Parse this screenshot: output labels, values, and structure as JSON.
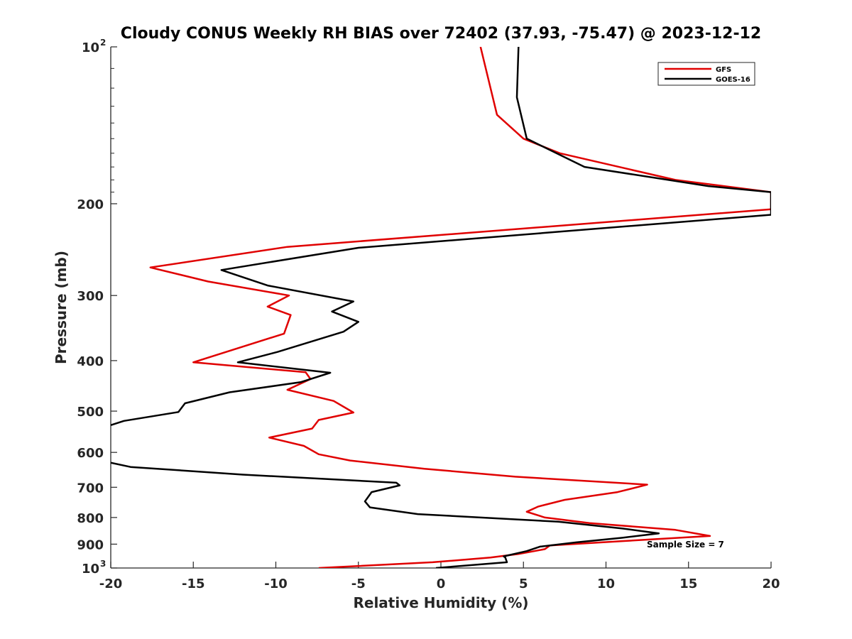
{
  "chart_data": {
    "type": "line",
    "title": "Cloudy CONUS Weekly RH BIAS over 72402 (37.93, -75.47) @ 2023-12-12",
    "xlabel": "Relative Humidity (%)",
    "ylabel": "Pressure (mb)",
    "xlim": [
      -20,
      20
    ],
    "ylim": [
      100,
      1000
    ],
    "yscale": "log",
    "y_reversed": true,
    "grid": false,
    "legend_position": "top-right",
    "x_ticks": [
      "-20",
      "-15",
      "-10",
      "-5",
      "0",
      "5",
      "10",
      "15",
      "20"
    ],
    "x_tick_values": [
      -20,
      -15,
      -10,
      -5,
      0,
      5,
      10,
      15,
      20
    ],
    "y_ticks": [
      {
        "value": 100,
        "base": "10",
        "exp": "2"
      },
      {
        "value": 200,
        "base": "200",
        "exp": ""
      },
      {
        "value": 300,
        "base": "300",
        "exp": ""
      },
      {
        "value": 400,
        "base": "400",
        "exp": ""
      },
      {
        "value": 500,
        "base": "500",
        "exp": ""
      },
      {
        "value": 600,
        "base": "600",
        "exp": ""
      },
      {
        "value": 700,
        "base": "700",
        "exp": ""
      },
      {
        "value": 800,
        "base": "800",
        "exp": ""
      },
      {
        "value": 900,
        "base": "900",
        "exp": ""
      },
      {
        "value": 1000,
        "base": "10",
        "exp": "3"
      }
    ],
    "annotation": "Sample Size = 7",
    "series": [
      {
        "name": "GFS",
        "color": "#e00000",
        "points": [
          [
            2.4,
            100
          ],
          [
            3.4,
            135
          ],
          [
            5.0,
            150
          ],
          [
            7.2,
            160
          ],
          [
            14.2,
            180
          ],
          [
            20,
            190
          ],
          [
            20,
            205
          ],
          [
            -9.3,
            242
          ],
          [
            -17.6,
            265
          ],
          [
            -14.1,
            282
          ],
          [
            -9.2,
            300
          ],
          [
            -10.5,
            315
          ],
          [
            -9.1,
            327
          ],
          [
            -9.5,
            355
          ],
          [
            -15.0,
            403
          ],
          [
            -8.2,
            421
          ],
          [
            -7.9,
            434
          ],
          [
            -9.3,
            455
          ],
          [
            -6.5,
            478
          ],
          [
            -5.3,
            503
          ],
          [
            -7.4,
            520
          ],
          [
            -7.8,
            540
          ],
          [
            -10.4,
            562
          ],
          [
            -8.3,
            583
          ],
          [
            -7.4,
            605
          ],
          [
            -5.5,
            622
          ],
          [
            -1.0,
            645
          ],
          [
            4.5,
            668
          ],
          [
            12.5,
            692
          ],
          [
            10.7,
            715
          ],
          [
            7.5,
            740
          ],
          [
            5.9,
            762
          ],
          [
            5.2,
            780
          ],
          [
            6.3,
            800
          ],
          [
            9.0,
            820
          ],
          [
            14.2,
            845
          ],
          [
            16.3,
            868
          ],
          [
            11.0,
            888
          ],
          [
            6.6,
            905
          ],
          [
            6.3,
            920
          ],
          [
            4.7,
            940
          ],
          [
            3.0,
            955
          ],
          [
            -0.5,
            975
          ],
          [
            -7.4,
            1000
          ]
        ]
      },
      {
        "name": "GOES-16",
        "color": "#000000",
        "points": [
          [
            4.7,
            100
          ],
          [
            4.6,
            125
          ],
          [
            5.2,
            150
          ],
          [
            8.7,
            170
          ],
          [
            16.2,
            185
          ],
          [
            20,
            190
          ],
          [
            20,
            210
          ],
          [
            -5.0,
            243
          ],
          [
            -13.3,
            268
          ],
          [
            -10.5,
            287
          ],
          [
            -5.3,
            308
          ],
          [
            -6.6,
            322
          ],
          [
            -5.0,
            337
          ],
          [
            -5.9,
            352
          ],
          [
            -9.9,
            385
          ],
          [
            -12.3,
            403
          ],
          [
            -6.7,
            422
          ],
          [
            -8.5,
            440
          ],
          [
            -12.8,
            460
          ],
          [
            -15.5,
            483
          ],
          [
            -15.9,
            502
          ],
          [
            -19.2,
            522
          ],
          [
            -20,
            532
          ],
          [
            null,
            null
          ],
          [
            -20,
            628
          ],
          [
            -18.8,
            640
          ],
          [
            -12.0,
            662
          ],
          [
            -2.7,
            686
          ],
          [
            -2.5,
            694
          ],
          [
            -4.2,
            715
          ],
          [
            -4.6,
            745
          ],
          [
            -4.3,
            765
          ],
          [
            -1.4,
            788
          ],
          [
            7.1,
            815
          ],
          [
            11.0,
            840
          ],
          [
            13.2,
            858
          ],
          [
            11.0,
            875
          ],
          [
            8.2,
            893
          ],
          [
            6.0,
            910
          ],
          [
            5.2,
            928
          ],
          [
            3.8,
            950
          ],
          [
            3.9,
            955
          ],
          [
            4.0,
            975
          ],
          [
            -0.3,
            1000
          ]
        ]
      }
    ]
  }
}
